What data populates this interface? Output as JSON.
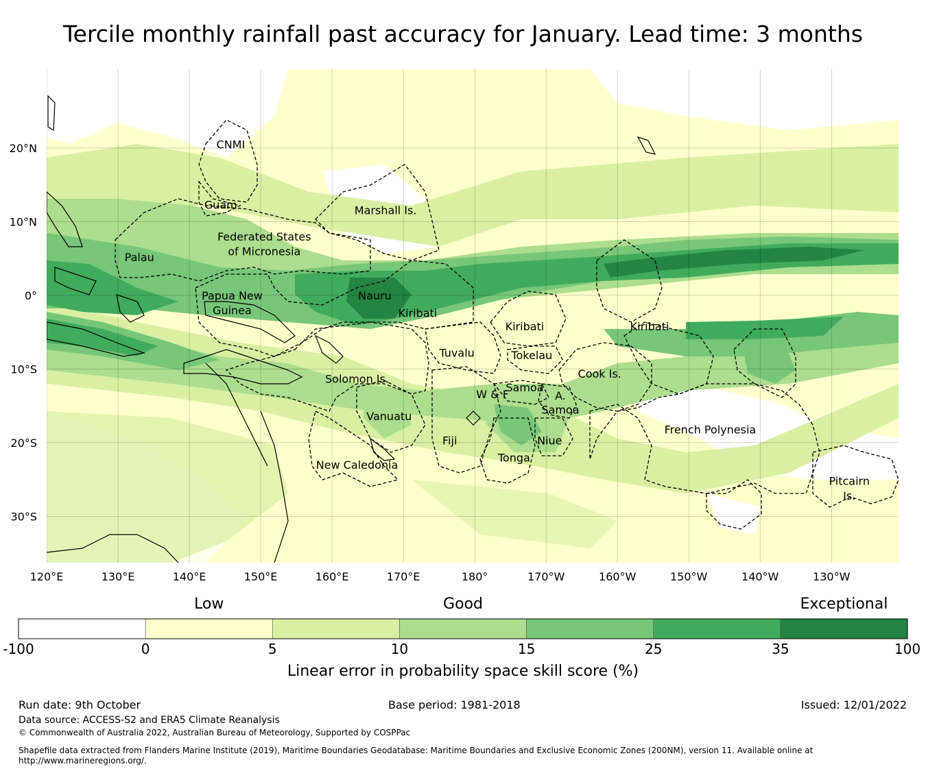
{
  "title": "Tercile monthly rainfall past accuracy for January. Lead time: 3 months",
  "map": {
    "lat_labels": [
      "20°N",
      "10°N",
      "0°",
      "10°S",
      "20°S",
      "30°S"
    ],
    "lat_values": [
      20,
      10,
      0,
      -10,
      -20,
      -30
    ],
    "lon_labels": [
      "120°E",
      "130°E",
      "140°E",
      "150°E",
      "160°E",
      "170°E",
      "180°",
      "170°W",
      "160°W",
      "150°W",
      "140°W",
      "130°W"
    ],
    "lon_values": [
      120,
      130,
      140,
      150,
      160,
      170,
      180,
      190,
      200,
      210,
      220,
      230
    ],
    "regions": [
      {
        "name": "CNMI",
        "lon": 145.8,
        "lat": 20.5
      },
      {
        "name": "Guam",
        "lon": 144.4,
        "lat": 12.3
      },
      {
        "name": "Marshall Is.",
        "lon": 167.5,
        "lat": 11.6
      },
      {
        "name": "Federated States",
        "lon": 150.5,
        "lat": 8.0
      },
      {
        "name": "of Micronesia",
        "lon": 150.5,
        "lat": 6.0
      },
      {
        "name": "Palau",
        "lon": 133.0,
        "lat": 5.2
      },
      {
        "name": "Papua New",
        "lon": 146.0,
        "lat": 0.0
      },
      {
        "name": "Guinea",
        "lon": 146.0,
        "lat": -2.0
      },
      {
        "name": "Nauru",
        "lon": 166.0,
        "lat": 0.0
      },
      {
        "name": "Kiribati",
        "lon": 172.0,
        "lat": -2.4
      },
      {
        "name": "Kiribati",
        "lon": 187.0,
        "lat": -4.2
      },
      {
        "name": "Kiribati",
        "lon": 204.5,
        "lat": -4.2
      },
      {
        "name": "Tuvalu",
        "lon": 177.5,
        "lat": -7.8
      },
      {
        "name": "Tokelau",
        "lon": 188.0,
        "lat": -8.1
      },
      {
        "name": "Cook Is.",
        "lon": 197.5,
        "lat": -10.6
      },
      {
        "name": "Solomon Is.",
        "lon": 163.5,
        "lat": -11.3
      },
      {
        "name": "Samoa",
        "lon": 187.0,
        "lat": -12.5
      },
      {
        "name": "W & F",
        "lon": 182.5,
        "lat": -13.4
      },
      {
        "name": "A.",
        "lon": 192.0,
        "lat": -13.6
      },
      {
        "name": "Samoa",
        "lon": 192.0,
        "lat": -15.5
      },
      {
        "name": "Vanuatu",
        "lon": 168.0,
        "lat": -16.4
      },
      {
        "name": "Fiji",
        "lon": 176.5,
        "lat": -19.7
      },
      {
        "name": "Niue",
        "lon": 190.5,
        "lat": -19.7
      },
      {
        "name": "Tonga",
        "lon": 185.5,
        "lat": -22.0
      },
      {
        "name": "New Caledonia",
        "lon": 163.5,
        "lat": -23.0
      },
      {
        "name": "French Polynesia",
        "lon": 213.0,
        "lat": -18.2
      },
      {
        "name": "Pitcairn",
        "lon": 232.5,
        "lat": -25.2
      },
      {
        "name": "Is.",
        "lon": 232.5,
        "lat": -27.2
      }
    ]
  },
  "legend": {
    "category_labels": [
      "Low",
      "Good",
      "Exceptional"
    ],
    "bins": [
      {
        "label": "-100",
        "color": "#ffffff"
      },
      {
        "label": "0",
        "color": "#ffffcc"
      },
      {
        "label": "5",
        "color": "#d9f0a3"
      },
      {
        "label": "10",
        "color": "#addd8e"
      },
      {
        "label": "15",
        "color": "#78c679"
      },
      {
        "label": "25",
        "color": "#41ab5d"
      },
      {
        "label": "35",
        "color": "#238443"
      }
    ],
    "end_label": "100",
    "axis_label": "Linear error in probability space skill score (%)"
  },
  "footer": {
    "run_date": "Run date: 9th October",
    "base_period": "Base period: 1981-2018",
    "issued": "Issued: 12/01/2022",
    "data_source": "Data source: ACCESS-S2 and ERA5 Climate Reanalysis",
    "copyright": "© Commonwealth of Australia 2022, Australian Bureau of Meteorology, Supported by COSPPac",
    "shapefile_line1": "Shapefile data extracted from Flanders Marine Institute (2019), Maritime Boundaries Geodatabase: Maritime Boundaries and Exclusive Economic Zones (200NM), version 11. Available online at",
    "shapefile_line2": "http://www.marineregions.org/."
  }
}
